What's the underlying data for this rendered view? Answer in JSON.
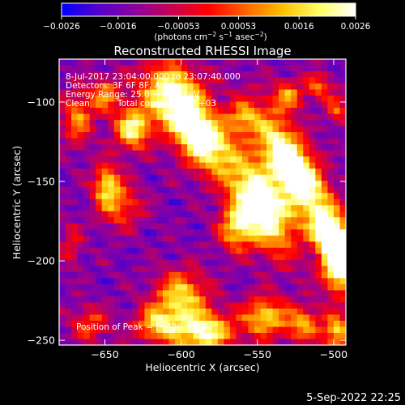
{
  "chart_data": {
    "type": "heatmap",
    "title": "Reconstructed RHESSI Image",
    "xlabel": "Heliocentric X (arcsec)",
    "ylabel": "Heliocentric Y (arcsec)",
    "xlim": [
      -680,
      -492
    ],
    "ylim": [
      -253,
      -73
    ],
    "xticks": [
      -650,
      -600,
      -550,
      -500
    ],
    "xtick_labels": [
      "−650",
      "−600",
      "−550",
      "−500"
    ],
    "yticks": [
      -100,
      -150,
      -200,
      -250
    ],
    "ytick_labels": [
      "−100",
      "−150",
      "−200",
      "−250"
    ],
    "colorbar": {
      "range": [
        -0.0026,
        0.0026
      ],
      "ticks": [
        -0.0026,
        -0.0016,
        -0.00053,
        0.00053,
        0.0016,
        0.0026
      ],
      "tick_labels": [
        "−0.0026",
        "−0.0016",
        "−0.00053",
        "0.00053",
        "0.0016",
        "0.0026"
      ],
      "unit_main": "(photons cm",
      "unit_sup1": "−2",
      "unit_mid1": " s",
      "unit_sup2": "−1",
      "unit_mid2": " asec",
      "unit_sup3": "−2",
      "unit_end": ")",
      "colors": [
        "#0000ff",
        "#5500c8",
        "#8c00a0",
        "#c80050",
        "#ff0000",
        "#ff6400",
        "#ffbe00",
        "#ffff64",
        "#ffffff"
      ]
    },
    "blobs": [
      {
        "x": -526,
        "y": -143,
        "amp": 1.0,
        "sx": 10,
        "sy": 28,
        "rot": -32
      },
      {
        "x": -548,
        "y": -165,
        "amp": 0.95,
        "sx": 11,
        "sy": 22,
        "rot": -30
      },
      {
        "x": -564,
        "y": -180,
        "amp": 0.55,
        "sx": 8,
        "sy": 10,
        "rot": 0
      },
      {
        "x": -585,
        "y": -125,
        "amp": 0.8,
        "sx": 11,
        "sy": 15,
        "rot": -40
      },
      {
        "x": -605,
        "y": -97,
        "amp": 0.85,
        "sx": 13,
        "sy": 16,
        "rot": -45
      },
      {
        "x": -632,
        "y": -117,
        "amp": 0.7,
        "sx": 8,
        "sy": 9,
        "rot": 0
      },
      {
        "x": -650,
        "y": -96,
        "amp": 0.45,
        "sx": 7,
        "sy": 8,
        "rot": 0
      },
      {
        "x": -668,
        "y": -110,
        "amp": 0.45,
        "sx": 7,
        "sy": 12,
        "rot": 0
      },
      {
        "x": -649,
        "y": -151,
        "amp": 0.55,
        "sx": 6,
        "sy": 9,
        "rot": 0
      },
      {
        "x": -640,
        "y": -165,
        "amp": 0.4,
        "sx": 10,
        "sy": 10,
        "rot": 0
      },
      {
        "x": -496,
        "y": -200,
        "amp": 1.05,
        "sx": 8,
        "sy": 13,
        "rot": 0
      },
      {
        "x": -505,
        "y": -180,
        "amp": 0.6,
        "sx": 7,
        "sy": 8,
        "rot": 0
      },
      {
        "x": -600,
        "y": -222,
        "amp": 0.6,
        "sx": 12,
        "sy": 11,
        "rot": 0
      },
      {
        "x": -585,
        "y": -245,
        "amp": 0.75,
        "sx": 14,
        "sy": 9,
        "rot": 0
      },
      {
        "x": -616,
        "y": -240,
        "amp": 0.55,
        "sx": 10,
        "sy": 8,
        "rot": 0
      },
      {
        "x": -545,
        "y": -235,
        "amp": 0.6,
        "sx": 10,
        "sy": 9,
        "rot": 0
      },
      {
        "x": -520,
        "y": -240,
        "amp": 0.5,
        "sx": 8,
        "sy": 8,
        "rot": 0
      },
      {
        "x": -498,
        "y": -245,
        "amp": 0.6,
        "sx": 6,
        "sy": 8,
        "rot": 0
      },
      {
        "x": -530,
        "y": -96,
        "amp": 0.45,
        "sx": 7,
        "sy": 7,
        "rot": 0
      },
      {
        "x": -510,
        "y": -90,
        "amp": 0.4,
        "sx": 6,
        "sy": 6,
        "rot": 0
      },
      {
        "x": -498,
        "y": -105,
        "amp": 0.35,
        "sx": 5,
        "sy": 7,
        "rot": 0
      },
      {
        "x": -560,
        "y": -110,
        "amp": 0.4,
        "sx": 7,
        "sy": 7,
        "rot": 0
      },
      {
        "x": -660,
        "y": -240,
        "amp": 0.35,
        "sx": 9,
        "sy": 8,
        "rot": 0
      },
      {
        "x": -672,
        "y": -190,
        "amp": 0.25,
        "sx": 5,
        "sy": 10,
        "rot": 0
      }
    ],
    "annotations": {
      "time": "8-Jul-2017 23:04:00.000 to 23:07:40.000",
      "detectors": "Detectors: 3F 6F 8F, Att 0",
      "energy": "Energy Range: 25.0 − 50.0 keV",
      "clean": "Clean",
      "counts": "Total counts: 9.21E+03",
      "peak": "Position of Peak = [−496,−200]"
    },
    "date_stamp": "5-Sep-2022 22:25"
  }
}
